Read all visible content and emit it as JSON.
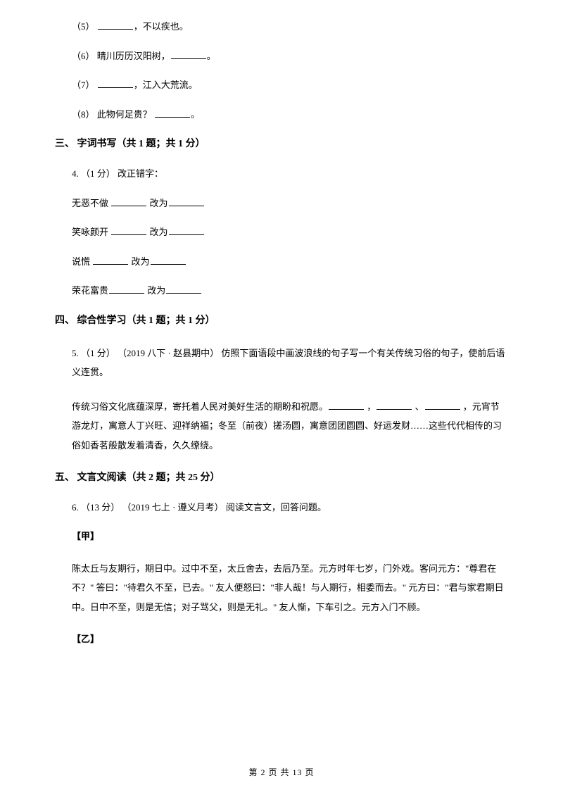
{
  "q2": {
    "items": [
      {
        "prefix": "（5）  ",
        "blankW": "w50",
        "suffix": "，不以疾也。"
      },
      {
        "prefix": "（6）  晴川历历汉阳树，",
        "blankW": "w50",
        "suffix": "。"
      },
      {
        "prefix": "（7）  ",
        "blankW": "w50",
        "suffix": "，江入大荒流。"
      },
      {
        "prefix": "（8）  此物何足贵？  ",
        "blankW": "w50",
        "suffix": "。"
      }
    ]
  },
  "section3": {
    "title": "三、 字词书写（共 1 题；共 1 分）",
    "stem": "4.  （1 分）  改正错字：",
    "rows": [
      {
        "word": "无恶不做  ",
        "mid": "  改为"
      },
      {
        "word": "笑咏颜开  ",
        "mid": "  改为"
      },
      {
        "word": "说慌      ",
        "mid": "  改为"
      },
      {
        "word": "荣花富贵",
        "mid": "  改为"
      }
    ]
  },
  "section4": {
    "title": "四、 综合性学习（共 1 题；共 1 分）",
    "stem": "5.  （1 分）  （2019 八下 · 赵县期中）  仿照下面语段中画波浪线的句子写一个有关传统习俗的句子，使前后语义连贯。",
    "para1a": "   传统习俗文化底蕴深厚，寄托着人民对美好生活的期盼和祝愿。",
    "para1sep1": " ，",
    "para1sep2": " 、",
    "para1b": " ，元宵节游龙灯，寓意人丁兴旺、迎祥纳福；冬至（前夜）搓汤圆，寓意团团圆圆、好运发财……这些代代相传的习俗如香茗般散发着清香，久久缭绕。"
  },
  "section5": {
    "title": "五、 文言文阅读（共 2 题；共 25 分）",
    "stem": "6.  （13 分）  （2019 七上 · 遵义月考）  阅读文言文，回答问题。",
    "jia": "【甲】",
    "jiaText": "   陈太丘与友期行，期日中。过中不至，太丘舍去，去后乃至。元方时年七岁，门外戏。客问元方：\"尊君在不？\" 答曰：\"待君久不至，已去。\" 友人便怒曰：\"非人哉！与人期行，相委而去。\" 元方曰：\"君与家君期日中。日中不至，则是无信；对子骂父，则是无礼。\" 友人惭，下车引之。元方入门不顾。",
    "yi": "【乙】"
  },
  "footer": "第  2  页  共  13  页"
}
